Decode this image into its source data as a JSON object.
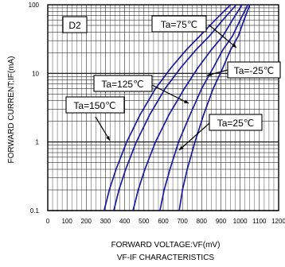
{
  "chart_data": {
    "type": "line",
    "title": "VF-IF CHARACTERISTICS",
    "xlabel": "FORWARD VOLTAGE:VF(mV)",
    "ylabel": "FORWARD CURRENT:IF(mA)",
    "xlim": [
      0,
      1200
    ],
    "ylim": [
      0.1,
      100
    ],
    "y_scale": "log",
    "x_ticks": [
      "0",
      "100",
      "200",
      "300",
      "400",
      "500",
      "600",
      "700",
      "800",
      "900",
      "1000",
      "1100",
      "1200"
    ],
    "y_ticks": [
      "0.1",
      "1",
      "10",
      "100"
    ],
    "grid": true,
    "device_label": "D2",
    "series": [
      {
        "name": "Ta=150℃",
        "x": [
          293,
          320,
          355,
          410,
          480,
          560,
          640,
          720,
          790,
          870,
          950
        ],
        "y": [
          0.1,
          0.2,
          0.4,
          1,
          2.5,
          6,
          12,
          22,
          35,
          60,
          100
        ]
      },
      {
        "name": "Ta=125℃",
        "x": [
          343,
          370,
          405,
          460,
          530,
          610,
          690,
          770,
          840,
          910,
          980
        ],
        "y": [
          0.1,
          0.2,
          0.4,
          1,
          2.5,
          6,
          12,
          22,
          35,
          60,
          100
        ]
      },
      {
        "name": "Ta=75℃",
        "x": [
          443,
          470,
          505,
          560,
          630,
          710,
          780,
          850,
          910,
          960,
          1010
        ],
        "y": [
          0.1,
          0.2,
          0.4,
          1,
          2.5,
          6,
          12,
          22,
          35,
          60,
          100
        ]
      },
      {
        "name": "Ta=25℃",
        "x": [
          583,
          605,
          635,
          680,
          740,
          800,
          860,
          910,
          960,
          1000,
          1040
        ],
        "y": [
          0.1,
          0.2,
          0.4,
          1,
          2.5,
          6,
          12,
          22,
          35,
          60,
          100
        ]
      },
      {
        "name": "Ta=-25℃",
        "x": [
          683,
          700,
          725,
          765,
          810,
          860,
          910,
          950,
          990,
          1020,
          1050
        ],
        "y": [
          0.1,
          0.2,
          0.4,
          1,
          2.5,
          6,
          12,
          22,
          35,
          60,
          100
        ]
      }
    ],
    "colors": {
      "curve": "#1a1aa0",
      "grid": "#000000"
    }
  }
}
